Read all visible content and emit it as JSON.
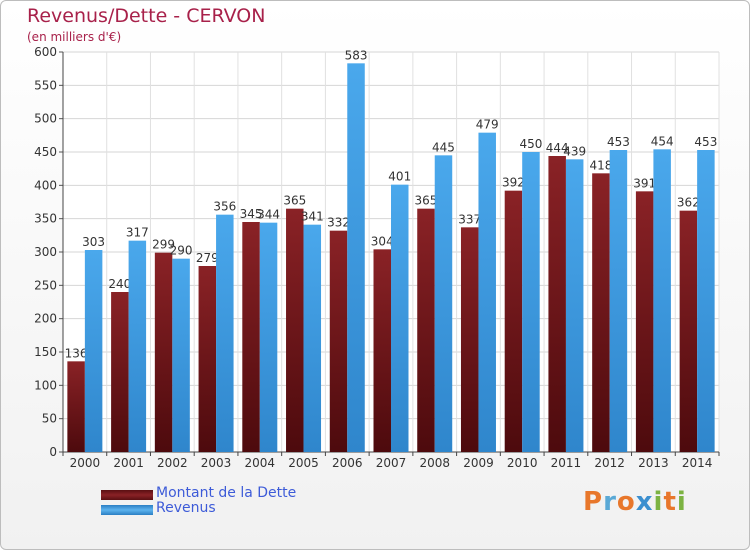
{
  "header": {
    "title": "Revenus/Dette - CERVON",
    "subtitle": "(en milliers d'€)"
  },
  "chart_data": {
    "type": "bar",
    "title": "Revenus/Dette - CERVON",
    "subtitle": "(en milliers d'€)",
    "xlabel": "",
    "ylabel": "",
    "ylim": [
      0,
      600
    ],
    "yticks": [
      0,
      50,
      100,
      150,
      200,
      250,
      300,
      350,
      400,
      450,
      500,
      550,
      600
    ],
    "grid": true,
    "legend_position": "bottom-left",
    "categories": [
      "2000",
      "2001",
      "2002",
      "2003",
      "2004",
      "2005",
      "2006",
      "2007",
      "2008",
      "2009",
      "2010",
      "2011",
      "2012",
      "2013",
      "2014"
    ],
    "series": [
      {
        "name": "Montant de la Dette",
        "color": "#7b1a1e",
        "values": [
          136,
          240,
          299,
          279,
          345,
          365,
          332,
          304,
          365,
          337,
          392,
          444,
          418,
          391,
          362
        ],
        "labels": [
          "136",
          "240",
          "299",
          "279",
          "345",
          "365",
          "332",
          "304",
          "365",
          "337",
          "392",
          "444",
          "418",
          "391",
          "362"
        ]
      },
      {
        "name": "Revenus",
        "color": "#3e9be0",
        "values": [
          303,
          317,
          290,
          356,
          344,
          341,
          583,
          401,
          445,
          479,
          450,
          439,
          453,
          454,
          453
        ],
        "labels": [
          "303",
          "317",
          "290",
          "356",
          "344",
          "341",
          "583",
          "401",
          "445",
          "479",
          "450",
          "439",
          "453",
          "454",
          "453"
        ]
      }
    ]
  },
  "legend": {
    "items": [
      {
        "label": "Montant de la Dette",
        "color": "#7b1a1e"
      },
      {
        "label": "Revenus",
        "color": "#3e9be0"
      }
    ]
  },
  "logo": {
    "text": "Proxiti",
    "colors": [
      "#e8772b",
      "#5aa9d6",
      "#e8772b",
      "#3b8fcf",
      "#7cb342",
      "#e8772b",
      "#7cb342"
    ]
  }
}
